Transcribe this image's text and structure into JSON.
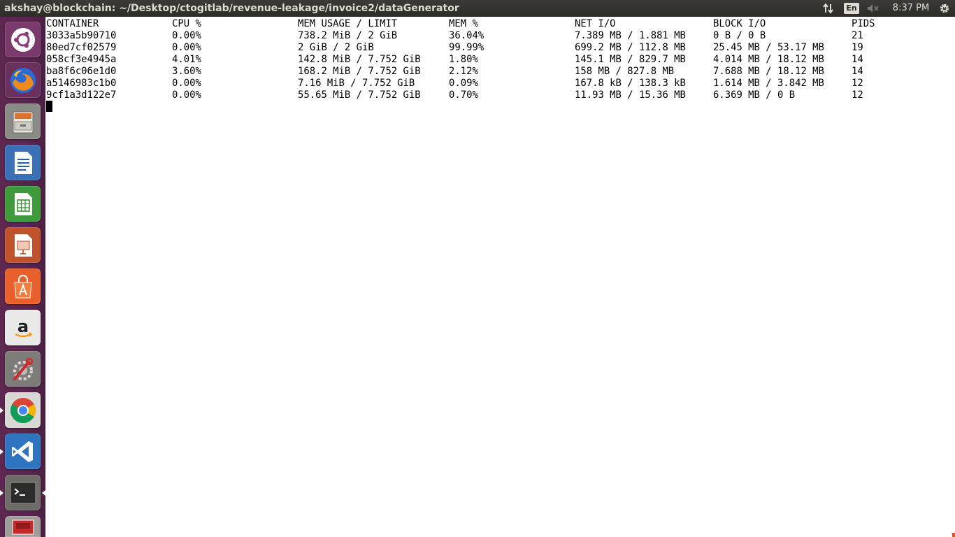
{
  "top_panel": {
    "window_title": "akshay@blockchain: ~/Desktop/ctogitlab/revenue-leakage/invoice2/dataGenerator",
    "keyboard_layout": "En",
    "clock": "8:37 PM",
    "icons": [
      "network-updown-icon",
      "keyboard-layout-icon",
      "sound-muted-icon",
      "session-gear-icon"
    ]
  },
  "launcher": {
    "items": [
      {
        "name": "dash-home",
        "icon": "ubuntu-logo-icon"
      },
      {
        "name": "firefox",
        "icon": "firefox-icon"
      },
      {
        "name": "files",
        "icon": "file-cabinet-icon"
      },
      {
        "name": "libreoffice-writer",
        "icon": "writer-icon"
      },
      {
        "name": "libreoffice-calc",
        "icon": "calc-icon"
      },
      {
        "name": "libreoffice-impress",
        "icon": "impress-icon"
      },
      {
        "name": "ubuntu-software",
        "icon": "software-bag-icon"
      },
      {
        "name": "amazon",
        "icon": "amazon-icon"
      },
      {
        "name": "system-settings",
        "icon": "settings-wrench-icon"
      },
      {
        "name": "chrome",
        "icon": "chrome-icon"
      },
      {
        "name": "vscode",
        "icon": "vscode-icon"
      },
      {
        "name": "terminal",
        "icon": "terminal-icon"
      },
      {
        "name": "app-partial",
        "icon": "red-app-icon"
      }
    ]
  },
  "terminal": {
    "headers": [
      "CONTAINER",
      "CPU %",
      "MEM USAGE / LIMIT",
      "MEM %",
      "NET I/O",
      "BLOCK I/O",
      "PIDS"
    ],
    "rows": [
      [
        "3033a5b90710",
        "0.00%",
        "738.2 MiB / 2 GiB",
        "36.04%",
        "7.389 MB / 1.881 MB",
        "0 B / 0 B",
        "21"
      ],
      [
        "80ed7cf02579",
        "0.00%",
        "2 GiB / 2 GiB",
        "99.99%",
        "699.2 MB / 112.8 MB",
        "25.45 MB / 53.17 MB",
        "19"
      ],
      [
        "058cf3e4945a",
        "4.01%",
        "142.8 MiB / 7.752 GiB",
        "1.80%",
        "145.1 MB / 829.7 MB",
        "4.014 MB / 18.12 MB",
        "14"
      ],
      [
        "ba8f6c06e1d0",
        "3.60%",
        "168.2 MiB / 7.752 GiB",
        "2.12%",
        "158 MB / 827.8 MB",
        "7.688 MB / 18.12 MB",
        "14"
      ],
      [
        "a5146983c1b0",
        "0.00%",
        "7.16 MiB / 7.752 GiB",
        "0.09%",
        "167.8 kB / 138.3 kB",
        "1.614 MB / 3.842 MB",
        "12"
      ],
      [
        "9cf1a3d122e7",
        "0.00%",
        "55.65 MiB / 7.752 GiB",
        "0.70%",
        "11.93 MB / 15.36 MB",
        "6.369 MB / 0 B",
        "12"
      ]
    ]
  },
  "colors": {
    "panel_bg": "#3c3b37",
    "panel_text": "#dfdbd2",
    "launcher_bg": "#5e2750",
    "terminal_bg": "#ffffff",
    "terminal_text": "#000000",
    "accent": "#e95420"
  }
}
